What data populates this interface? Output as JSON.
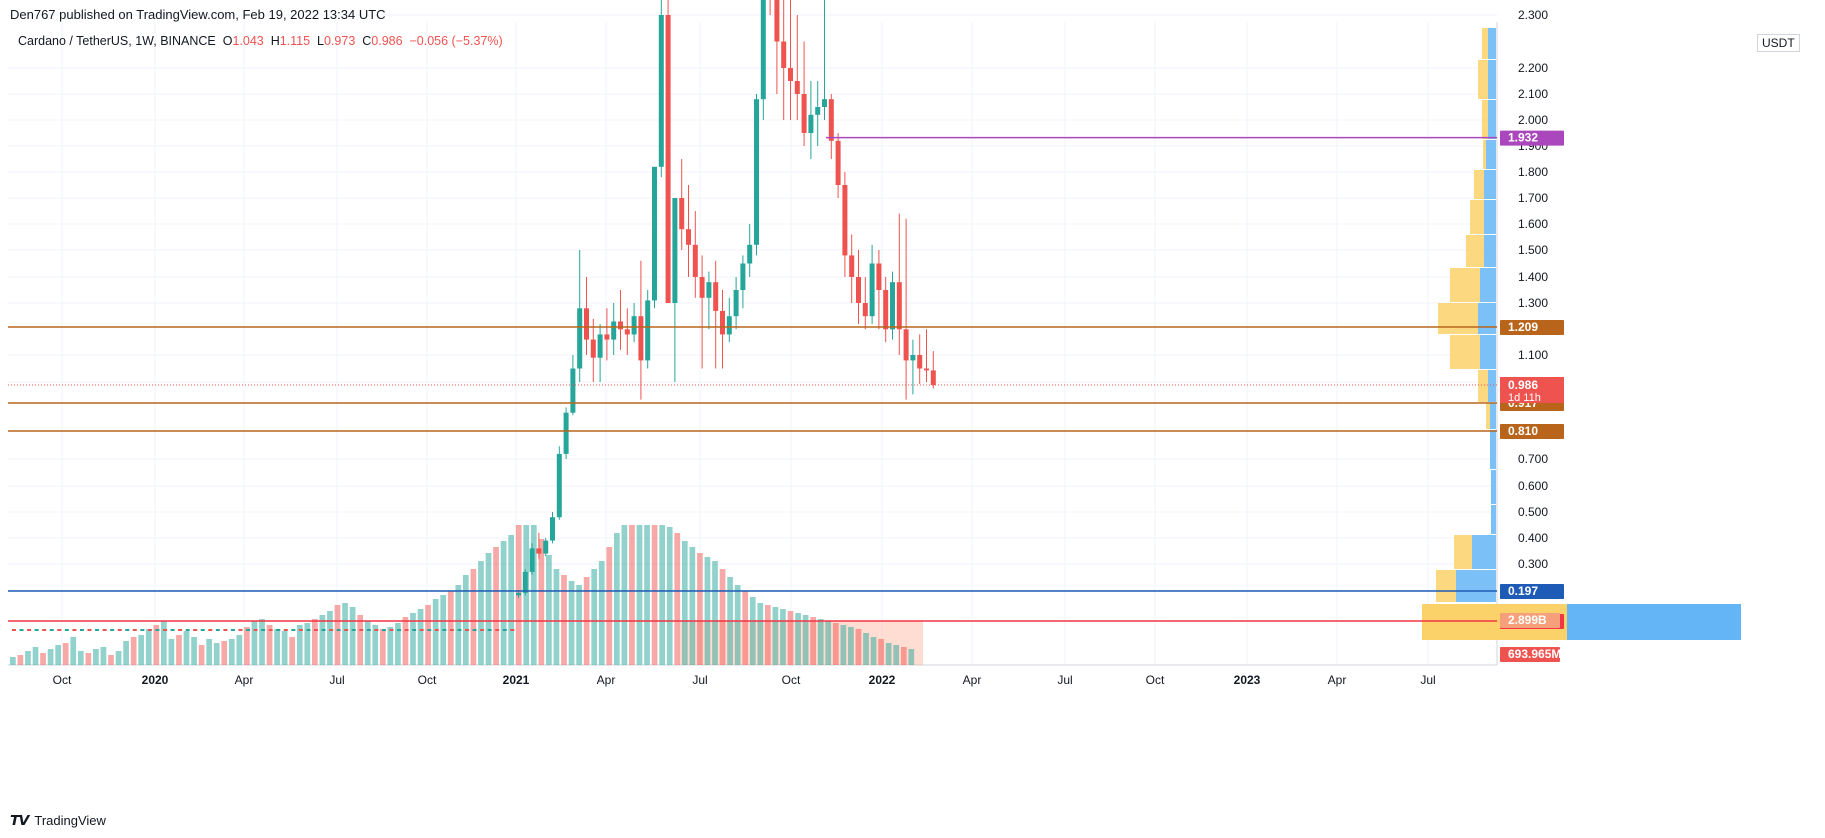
{
  "header": {
    "published": "Den767 published on TradingView.com, Feb 19, 2022 13:34 UTC"
  },
  "legend": {
    "symbol": "Cardano / TetherUS, 1W, BINANCE",
    "o_label": "O",
    "o": "1.043",
    "h_label": "H",
    "h": "1.115",
    "l_label": "L",
    "l": "0.973",
    "c_label": "C",
    "c": "0.986",
    "change": "−0.056 (−5.37%)"
  },
  "currency": "USDT",
  "footer": {
    "brand": "TradingView",
    "logo": "tradingview-logo"
  },
  "colors": {
    "up": "#26a69a",
    "down": "#ef5350",
    "orange": "#b8651b",
    "purple": "#ab47bc",
    "blue": "#1e5bb6",
    "red": "#f23645",
    "vp_blue": "#64b5f6",
    "vp_yellow": "#fbd16a"
  },
  "chart_data": {
    "type": "candlestick",
    "title": "Cardano / TetherUS, 1W, BINANCE",
    "y_axis_ticks": [
      "2.300",
      "2.200",
      "2.100",
      "2.000",
      "1.900",
      "1.800",
      "1.700",
      "1.600",
      "1.500",
      "1.400",
      "1.300",
      "1.100",
      "1.000",
      "0.700",
      "0.600",
      "0.500",
      "0.400",
      "0.300",
      "0.200"
    ],
    "x_axis_ticks": [
      "Oct",
      "2020",
      "Apr",
      "Jul",
      "Oct",
      "2021",
      "Apr",
      "Jul",
      "Oct",
      "2022",
      "Apr",
      "Jul",
      "Oct",
      "2023",
      "Apr",
      "Jul"
    ],
    "candles_from_2021": [
      [
        0.18,
        0.2,
        0.17,
        0.19
      ],
      [
        0.19,
        0.28,
        0.18,
        0.27
      ],
      [
        0.27,
        0.38,
        0.26,
        0.36
      ],
      [
        0.36,
        0.42,
        0.32,
        0.34
      ],
      [
        0.34,
        0.4,
        0.33,
        0.39
      ],
      [
        0.39,
        0.5,
        0.38,
        0.48
      ],
      [
        0.48,
        0.75,
        0.47,
        0.72
      ],
      [
        0.72,
        0.9,
        0.7,
        0.88
      ],
      [
        0.88,
        1.1,
        0.87,
        1.05
      ],
      [
        1.05,
        1.5,
        1.0,
        1.28
      ],
      [
        1.28,
        1.4,
        1.1,
        1.16
      ],
      [
        1.16,
        1.24,
        1.0,
        1.09
      ],
      [
        1.09,
        1.22,
        1.0,
        1.18
      ],
      [
        1.18,
        1.28,
        1.08,
        1.16
      ],
      [
        1.16,
        1.3,
        1.1,
        1.23
      ],
      [
        1.23,
        1.35,
        1.12,
        1.2
      ],
      [
        1.2,
        1.28,
        1.1,
        1.18
      ],
      [
        1.18,
        1.3,
        1.15,
        1.25
      ],
      [
        1.25,
        1.46,
        0.93,
        1.08
      ],
      [
        1.08,
        1.35,
        1.05,
        1.31
      ],
      [
        1.31,
        1.63,
        1.28,
        1.82
      ],
      [
        1.82,
        2.45,
        1.78,
        2.3
      ],
      [
        2.3,
        2.45,
        1.7,
        1.3
      ],
      [
        1.3,
        1.55,
        1.0,
        1.7
      ],
      [
        1.7,
        1.85,
        1.5,
        1.58
      ],
      [
        1.58,
        1.75,
        1.4,
        1.52
      ],
      [
        1.52,
        1.65,
        1.32,
        1.4
      ],
      [
        1.4,
        1.48,
        1.05,
        1.32
      ],
      [
        1.32,
        1.42,
        1.2,
        1.38
      ],
      [
        1.38,
        1.46,
        1.05,
        1.27
      ],
      [
        1.27,
        1.35,
        1.05,
        1.18
      ],
      [
        1.18,
        1.32,
        1.15,
        1.25
      ],
      [
        1.25,
        1.4,
        1.2,
        1.35
      ],
      [
        1.35,
        1.48,
        1.28,
        1.45
      ],
      [
        1.45,
        1.6,
        1.4,
        1.52
      ],
      [
        1.52,
        2.1,
        1.48,
        2.08
      ],
      [
        2.08,
        2.55,
        2.0,
        2.48
      ],
      [
        2.48,
        2.6,
        2.3,
        2.4
      ],
      [
        2.4,
        2.8,
        2.1,
        2.25
      ],
      [
        2.25,
        2.45,
        2.0,
        2.2
      ],
      [
        2.2,
        2.5,
        2.0,
        2.15
      ],
      [
        2.15,
        2.3,
        2.0,
        2.1
      ],
      [
        2.1,
        2.25,
        1.9,
        1.95
      ],
      [
        1.95,
        2.15,
        1.85,
        2.02
      ],
      [
        2.02,
        2.15,
        1.9,
        2.05
      ],
      [
        2.05,
        2.4,
        2.0,
        2.08
      ],
      [
        2.08,
        2.1,
        1.85,
        1.92
      ],
      [
        1.92,
        1.95,
        1.7,
        1.75
      ],
      [
        1.75,
        1.8,
        1.4,
        1.48
      ],
      [
        1.48,
        1.56,
        1.3,
        1.4
      ],
      [
        1.4,
        1.5,
        1.22,
        1.3
      ],
      [
        1.3,
        1.4,
        1.2,
        1.25
      ],
      [
        1.25,
        1.52,
        1.22,
        1.45
      ],
      [
        1.45,
        1.5,
        1.2,
        1.35
      ],
      [
        1.35,
        1.4,
        1.15,
        1.2
      ],
      [
        1.2,
        1.42,
        1.16,
        1.38
      ],
      [
        1.38,
        1.64,
        1.1,
        1.2
      ],
      [
        1.2,
        1.62,
        0.93,
        1.08
      ],
      [
        1.08,
        1.16,
        0.95,
        1.1
      ],
      [
        1.1,
        1.18,
        0.99,
        1.05
      ],
      [
        1.05,
        1.2,
        1.0,
        1.043
      ],
      [
        1.043,
        1.115,
        0.973,
        0.986
      ]
    ],
    "price_lines": [
      {
        "label": "1.932",
        "value": 1.932,
        "color": "#ab47bc"
      },
      {
        "label": "1.209",
        "value": 1.209,
        "color": "#b8651b"
      },
      {
        "label": "0.917",
        "value": 0.917,
        "color": "#b8651b"
      },
      {
        "label": "0.810",
        "value": 0.81,
        "color": "#b8651b"
      },
      {
        "label": "0.197",
        "value": 0.197,
        "color": "#1e5bb6"
      },
      {
        "label": "0.082",
        "value": 0.082,
        "color": "#f23645"
      }
    ],
    "last_price": {
      "label": "0.986",
      "countdown": "1d 11h"
    },
    "volume_labels": [
      "2.899B",
      "693.965M"
    ]
  }
}
